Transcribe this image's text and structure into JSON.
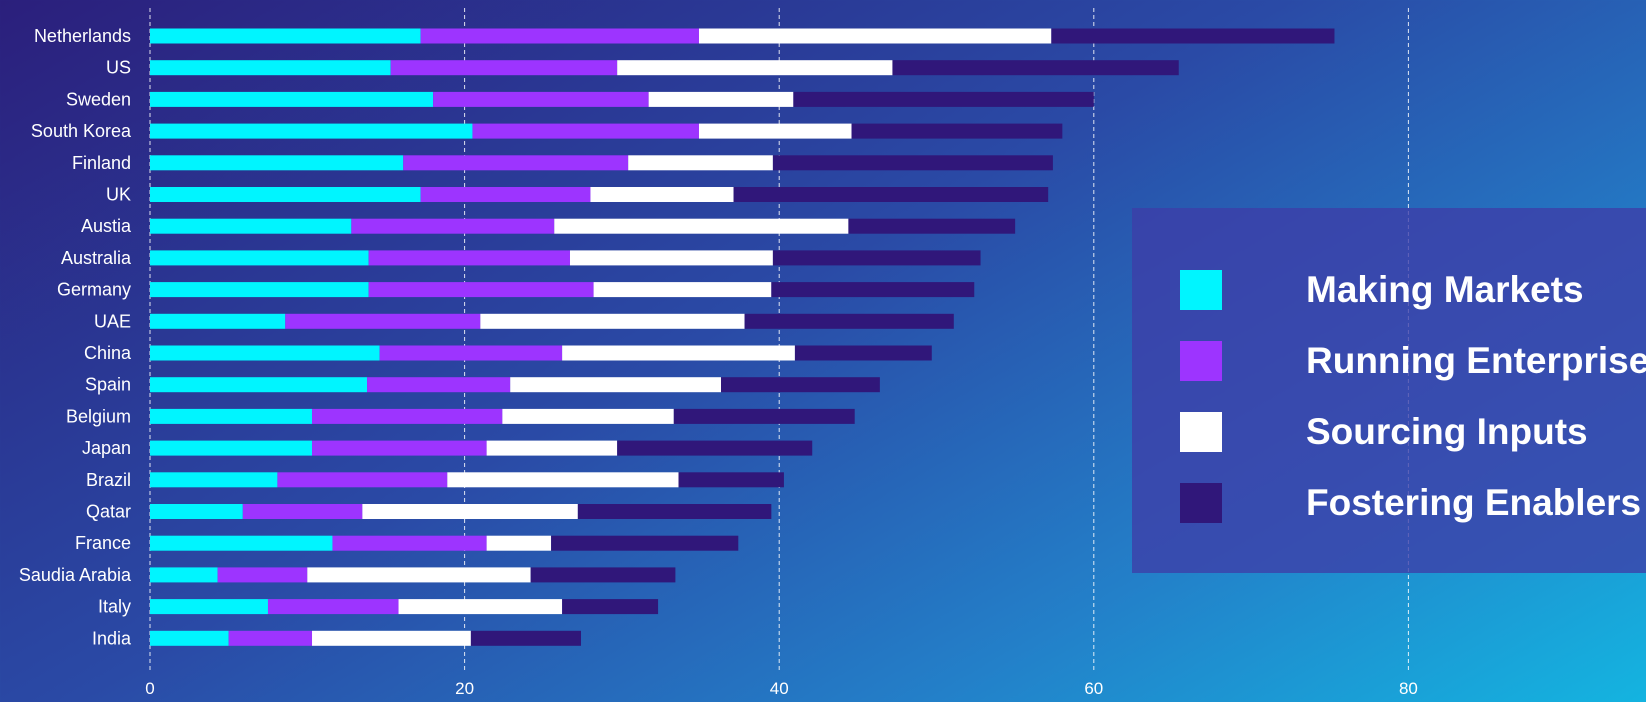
{
  "chart_data": {
    "type": "bar",
    "orientation": "horizontal",
    "stacked": true,
    "categories": [
      "Netherlands",
      "US",
      "Sweden",
      "South Korea",
      "Finland",
      "UK",
      "Austia",
      "Australia",
      "Germany",
      "UAE",
      "China",
      "Spain",
      "Belgium",
      "Japan",
      "Brazil",
      "Qatar",
      "France",
      "Saudia Arabia",
      "Italy",
      "India"
    ],
    "series": [
      {
        "name": "Making Markets",
        "color": "#00f5ff",
        "values": [
          17.2,
          15.3,
          18.0,
          20.5,
          16.1,
          17.2,
          12.8,
          13.9,
          13.9,
          8.6,
          14.6,
          13.8,
          10.3,
          10.3,
          8.1,
          5.9,
          11.6,
          4.3,
          7.5,
          5.0
        ]
      },
      {
        "name": "Running Enterprises",
        "color": "#9d34ff",
        "values": [
          17.7,
          14.4,
          13.7,
          14.4,
          14.3,
          10.8,
          12.9,
          12.8,
          14.3,
          12.4,
          11.6,
          9.1,
          12.1,
          11.1,
          10.8,
          7.6,
          9.8,
          5.7,
          8.3,
          5.3
        ]
      },
      {
        "name": "Sourcing Inputs",
        "color": "#ffffff",
        "values": [
          22.4,
          17.5,
          9.2,
          9.7,
          9.2,
          9.1,
          18.7,
          12.9,
          11.3,
          16.8,
          14.8,
          13.4,
          10.9,
          8.3,
          14.7,
          13.7,
          4.1,
          14.2,
          10.4,
          10.1
        ]
      },
      {
        "name": "Fostering Enablers",
        "color": "#30177a",
        "values": [
          18.0,
          18.2,
          19.1,
          13.4,
          17.8,
          20.0,
          10.6,
          13.2,
          12.9,
          13.3,
          8.7,
          10.1,
          11.5,
          12.4,
          6.7,
          12.3,
          11.9,
          9.2,
          6.1,
          7.0
        ]
      }
    ],
    "x_ticks": [
      0,
      20,
      40,
      60,
      80
    ],
    "xlim": [
      0,
      95
    ],
    "grid": "vertical dashed",
    "legend_placement": "right",
    "title": "",
    "xlabel": "",
    "ylabel": ""
  }
}
